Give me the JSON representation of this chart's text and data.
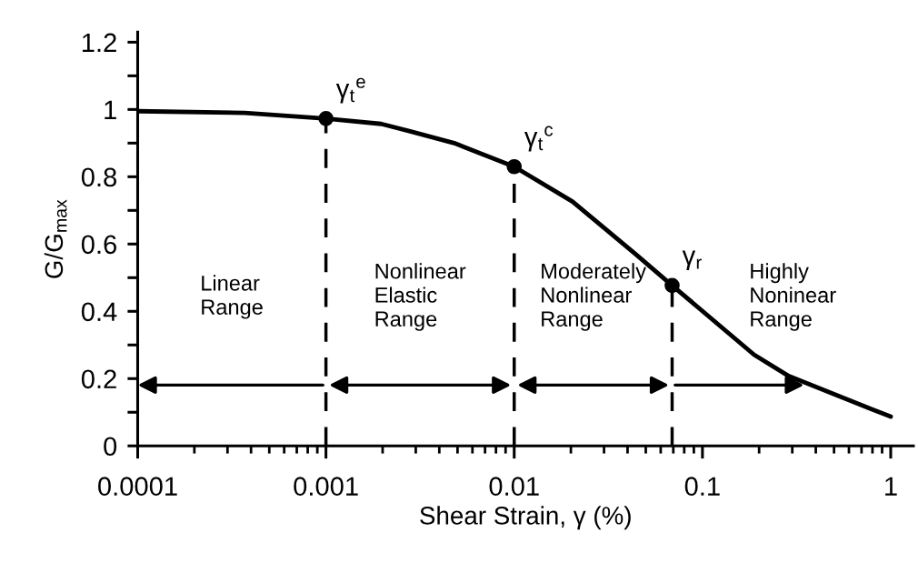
{
  "chart_data": {
    "type": "line",
    "xlabel": "Shear Strain, γ (%)",
    "ylabel": "G/G$_{max}$",
    "log": "x",
    "xlim": [
      0.0001,
      1.32
    ],
    "ylim": [
      0,
      1.23
    ],
    "xticks": [
      0.0001,
      0.001,
      0.01,
      0.1,
      1
    ],
    "yticks": [
      0,
      0.2,
      0.4,
      0.6,
      0.8,
      1,
      1.2
    ],
    "grid": false,
    "series": [
      {
        "marker": "none",
        "color": "#000000",
        "x": [
          0.0001,
          0.00037,
          0.001,
          0.00197,
          0.0028,
          0.0048,
          0.01,
          0.0204,
          0.0444,
          0.069,
          0.188,
          0.284,
          0.8,
          1
        ],
        "values": [
          0.995,
          0.99,
          0.973,
          0.957,
          0.935,
          0.9,
          0.83,
          0.726,
          0.569,
          0.477,
          0.271,
          0.209,
          0.108,
          0.087
        ]
      },
      {
        "type": "scatter",
        "marker": "circle",
        "color": "#000000",
        "x": [
          0.001,
          0.01,
          0.069
        ],
        "values": [
          0.973,
          0.83,
          0.477
        ]
      }
    ],
    "ref_lines": [
      {
        "axis": "x",
        "value": 0.001,
        "line_style": "dashed",
        "color": "#000000"
      },
      {
        "axis": "x",
        "value": 0.01,
        "line_style": "dashed",
        "color": "#000000"
      },
      {
        "axis": "x",
        "value": 0.069,
        "line_style": "dashed",
        "color": "#000000"
      }
    ],
    "annotations": [
      {
        "text": "γ$_{t}$$^{e}$",
        "x": 0.001,
        "y": 0.973
      },
      {
        "text": "γ$_{t}$$^{c}$",
        "x": 0.01,
        "y": 0.83
      },
      {
        "text": "γ$_{r}$",
        "x": 0.069,
        "y": 0.477
      },
      "Linear\nRange",
      "Nonlinear\nElastic\nRange",
      "Moderately\nNonlinear\nRange",
      "Highly\nNoninear\nRange"
    ]
  }
}
